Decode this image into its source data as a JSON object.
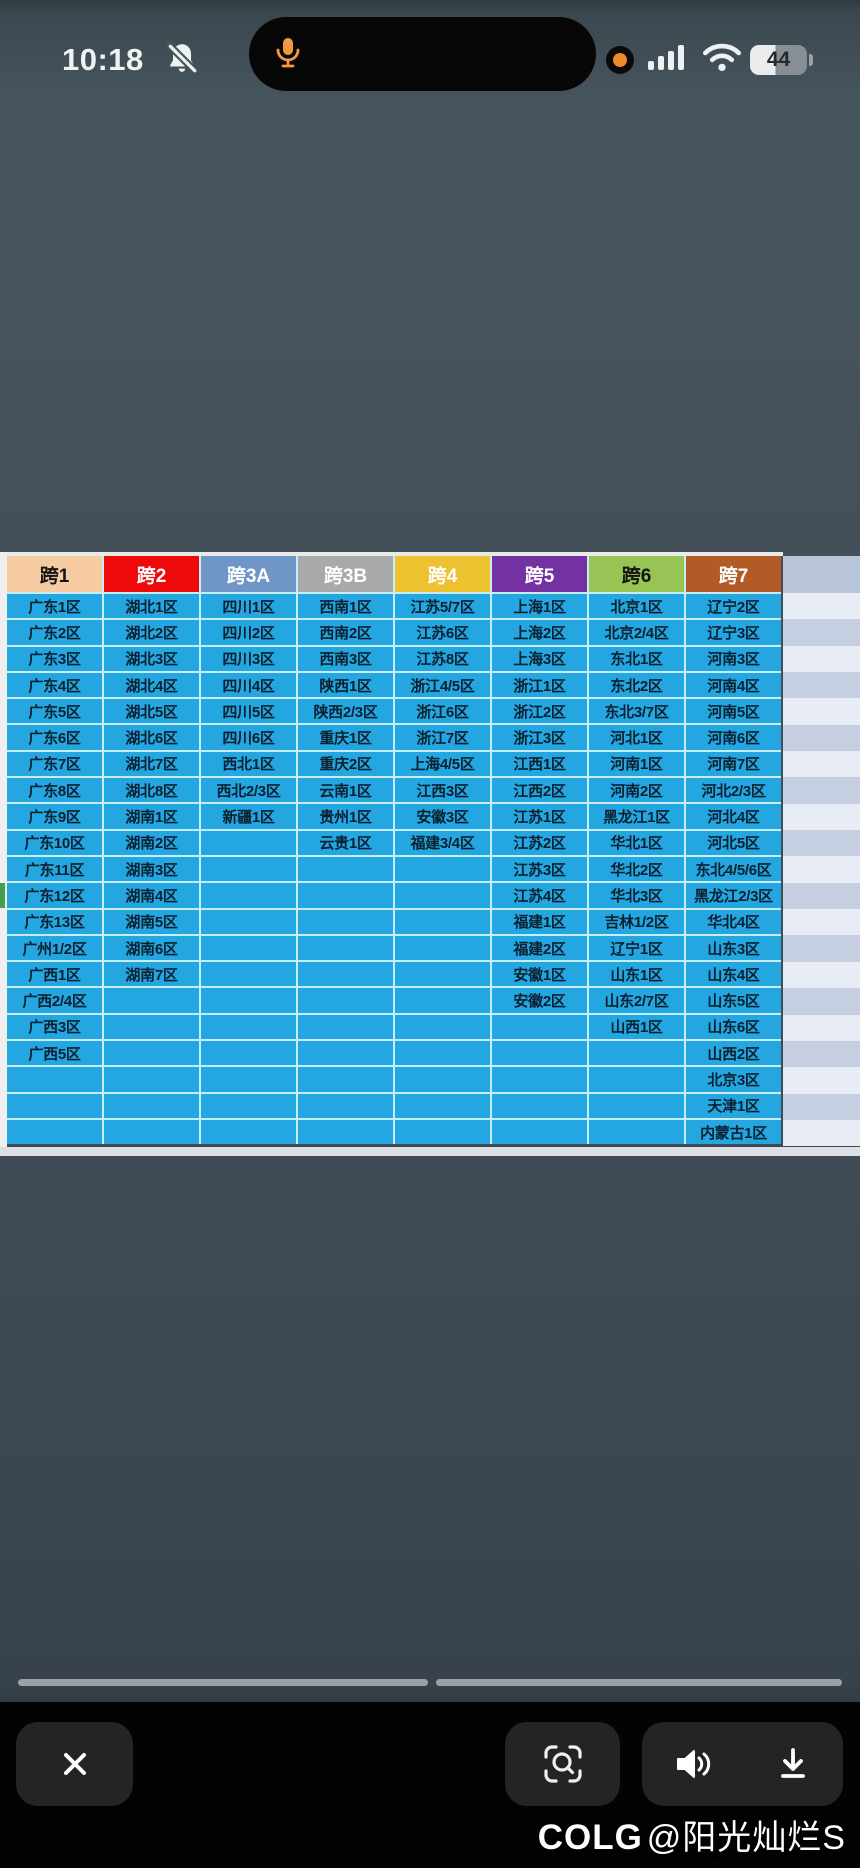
{
  "status_bar": {
    "time": "10:18",
    "battery_percent": "44",
    "icons": {
      "mute_bell": "bell-with-slash",
      "microphone": "orange-mic-in-dynamic-island",
      "mic_active_dot": "orange-dot",
      "signal": "4-bars",
      "wifi": "3-arc-wifi",
      "battery": "battery-44-percent"
    }
  },
  "table": {
    "row_count": 21,
    "headers": [
      {
        "label": "跨1",
        "bg": "#f6cba2",
        "fg": "#141414"
      },
      {
        "label": "跨2",
        "bg": "#ee0a0a",
        "fg": "#ffffff"
      },
      {
        "label": "跨3A",
        "bg": "#7096c8",
        "fg": "#ffffff"
      },
      {
        "label": "跨3B",
        "bg": "#a7a9ab",
        "fg": "#ffffff"
      },
      {
        "label": "跨4",
        "bg": "#eec130",
        "fg": "#ffffff"
      },
      {
        "label": "跨5",
        "bg": "#7331a1",
        "fg": "#ffffff"
      },
      {
        "label": "跨6",
        "bg": "#97c455",
        "fg": "#141414"
      },
      {
        "label": "跨7",
        "bg": "#b25b27",
        "fg": "#ffffff"
      }
    ],
    "columns": [
      [
        "广东1区",
        "广东2区",
        "广东3区",
        "广东4区",
        "广东5区",
        "广东6区",
        "广东7区",
        "广东8区",
        "广东9区",
        "广东10区",
        "广东11区",
        "广东12区",
        "广东13区",
        "广州1/2区",
        "广西1区",
        "广西2/4区",
        "广西3区",
        "广西5区"
      ],
      [
        "湖北1区",
        "湖北2区",
        "湖北3区",
        "湖北4区",
        "湖北5区",
        "湖北6区",
        "湖北7区",
        "湖北8区",
        "湖南1区",
        "湖南2区",
        "湖南3区",
        "湖南4区",
        "湖南5区",
        "湖南6区",
        "湖南7区"
      ],
      [
        "四川1区",
        "四川2区",
        "四川3区",
        "四川4区",
        "四川5区",
        "四川6区",
        "西北1区",
        "西北2/3区",
        "新疆1区"
      ],
      [
        "西南1区",
        "西南2区",
        "西南3区",
        "陕西1区",
        "陕西2/3区",
        "重庆1区",
        "重庆2区",
        "云南1区",
        "贵州1区",
        "云贵1区"
      ],
      [
        "江苏5/7区",
        "江苏6区",
        "江苏8区",
        "浙江4/5区",
        "浙江6区",
        "浙江7区",
        "上海4/5区",
        "江西3区",
        "安徽3区",
        "福建3/4区"
      ],
      [
        "上海1区",
        "上海2区",
        "上海3区",
        "浙江1区",
        "浙江2区",
        "浙江3区",
        "江西1区",
        "江西2区",
        "江苏1区",
        "江苏2区",
        "江苏3区",
        "江苏4区",
        "福建1区",
        "福建2区",
        "安徽1区",
        "安徽2区"
      ],
      [
        "北京1区",
        "北京2/4区",
        "东北1区",
        "东北2区",
        "东北3/7区",
        "河北1区",
        "河南1区",
        "河南2区",
        "黑龙江1区",
        "华北1区",
        "华北2区",
        "华北3区",
        "吉林1/2区",
        "辽宁1区",
        "山东1区",
        "山东2/7区",
        "山西1区"
      ],
      [
        "辽宁2区",
        "辽宁3区",
        "河南3区",
        "河南4区",
        "河南5区",
        "河南6区",
        "河南7区",
        "河北2/3区",
        "河北4区",
        "河北5区",
        "东北4/5/6区",
        "黑龙江2/3区",
        "华北4区",
        "山东3区",
        "山东4区",
        "山东5区",
        "山东6区",
        "山西2区",
        "北京3区",
        "天津1区",
        "内蒙古1区"
      ]
    ],
    "colors": {
      "cell_bg": "#24a7e0",
      "grid_line": "#c6edf9",
      "cell_text": "#0b2030",
      "empty_band_header": "#b8c5d8",
      "empty_band_light": "#e8ecf4",
      "empty_band_dark": "#c5cfe1",
      "selection_green": "#41a04b"
    }
  },
  "toolbar": {
    "close_glyph": "✕",
    "buttons": [
      "close",
      "visual-search",
      "speaker",
      "download"
    ]
  },
  "scrollbar": {
    "segments": 2
  },
  "watermark": {
    "logo": "COLG",
    "author": "@阳光灿烂S"
  }
}
